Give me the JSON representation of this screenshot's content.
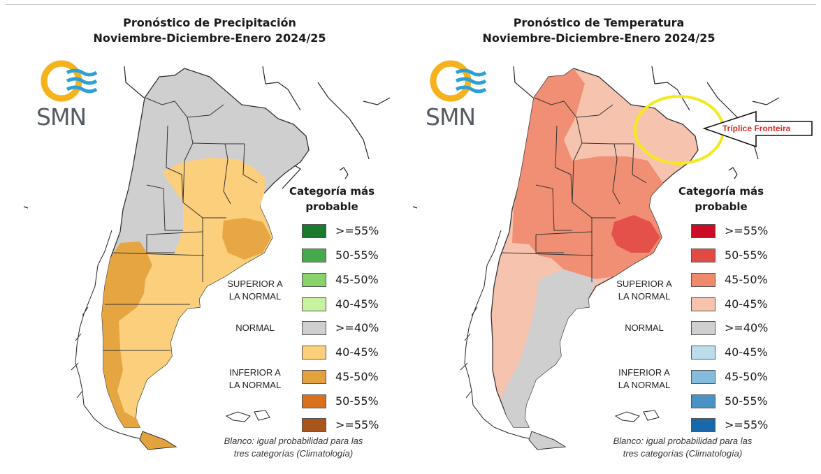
{
  "panels": [
    {
      "id": "precip",
      "title_line1": "Pronóstico de Precipitación",
      "title_line2": "Noviembre-Diciembre-Enero 2024/25",
      "logo_text": "SMN",
      "legend_title_line1": "Categoría más",
      "legend_title_line2": "probable",
      "legend": [
        {
          "label": ">=55%",
          "color": "#1a7a2e"
        },
        {
          "label": "50-55%",
          "color": "#44aa4c"
        },
        {
          "label": "45-50%",
          "color": "#86d46a"
        },
        {
          "label": "40-45%",
          "color": "#c8f2a0"
        },
        {
          "label": ">=40%",
          "color": "#cfcfcf"
        },
        {
          "label": "40-45%",
          "color": "#fbcf7c"
        },
        {
          "label": "45-50%",
          "color": "#e4a23e"
        },
        {
          "label": "50-55%",
          "color": "#d8701e"
        },
        {
          "label": ">=55%",
          "color": "#a9561c"
        }
      ],
      "group_superior_line1": "SUPERIOR A",
      "group_superior_line2": "LA NORMAL",
      "group_normal": "NORMAL",
      "group_inferior_line1": "INFERIOR A",
      "group_inferior_line2": "LA NORMAL",
      "footnote_line1": "Blanco: igual probabilidad para las",
      "footnote_line2": "tres categorías (Climatología)"
    },
    {
      "id": "temp",
      "title_line1": "Pronóstico de Temperatura",
      "title_line2": "Noviembre-Diciembre-Enero 2024/25",
      "logo_text": "SMN",
      "legend_title_line1": "Categoría más",
      "legend_title_line2": "probable",
      "legend": [
        {
          "label": ">=55%",
          "color": "#cc0c24"
        },
        {
          "label": "50-55%",
          "color": "#e24a46"
        },
        {
          "label": "45-50%",
          "color": "#f08a6e"
        },
        {
          "label": "40-45%",
          "color": "#f6c4ae"
        },
        {
          "label": ">=40%",
          "color": "#cfcfcf"
        },
        {
          "label": "40-45%",
          "color": "#bcdcec"
        },
        {
          "label": "45-50%",
          "color": "#84bcdc"
        },
        {
          "label": "50-55%",
          "color": "#4a92c6"
        },
        {
          "label": ">=55%",
          "color": "#1a68ac"
        }
      ],
      "group_superior_line1": "SUPERIOR A",
      "group_superior_line2": "LA NORMAL",
      "group_normal": "NORMAL",
      "group_inferior_line1": "INFERIOR A",
      "group_inferior_line2": "LA NORMAL",
      "footnote_line1": "Blanco: igual probabilidad para las",
      "footnote_line2": "tres categorías (Climatología)"
    }
  ],
  "annotation": {
    "label": "Tríplice Fronteira",
    "label_color": "#d62b2b",
    "circle_color": "#f2ea1a"
  },
  "logo_colors": {
    "ring": "#f5b21c",
    "waves": "#2aa0da",
    "text": "#555b63"
  }
}
